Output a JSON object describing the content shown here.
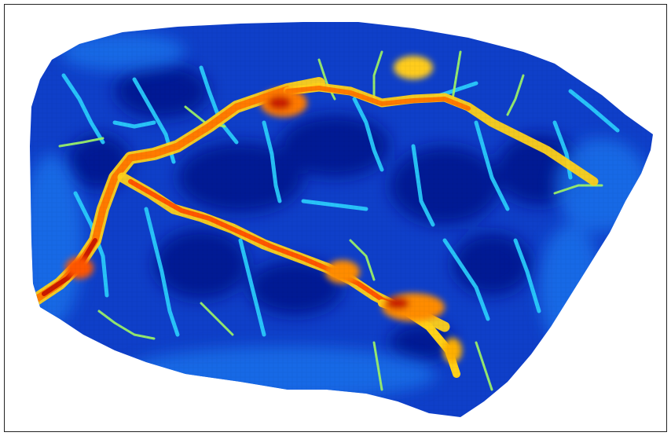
{
  "map": {
    "kind": "flow-accumulation raster",
    "colormap": "jet",
    "background_color": "#ffffff",
    "frame_color": "#222222",
    "colors": {
      "low": "#00008b",
      "mid_low": "#1565e6",
      "mid": "#22c7ff",
      "mid_high": "#8cf27a",
      "high": "#ffd21a",
      "very_high": "#ff7a00",
      "peak": "#c91a00"
    }
  }
}
